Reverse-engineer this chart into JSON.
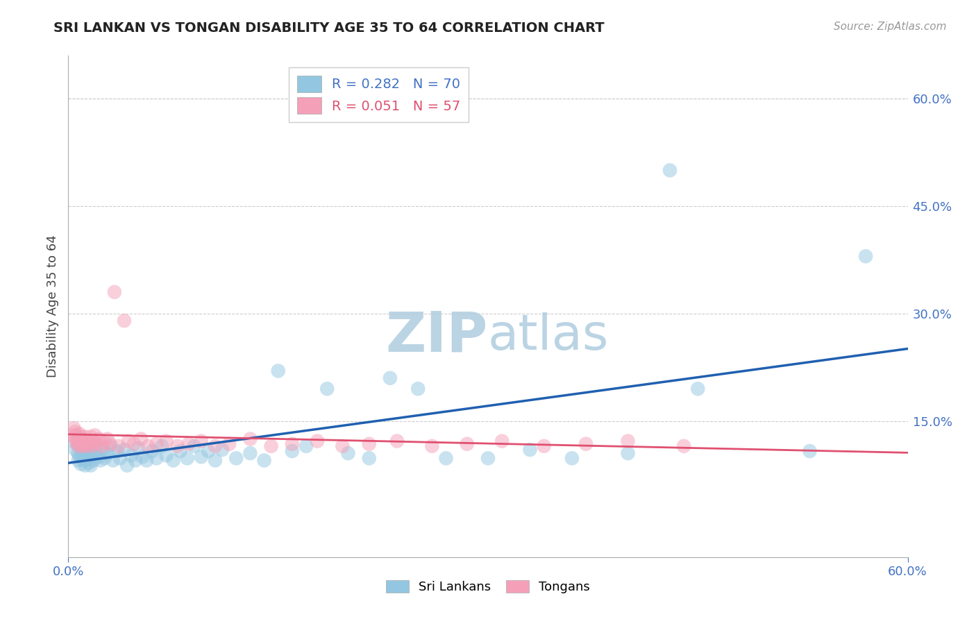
{
  "title": "SRI LANKAN VS TONGAN DISABILITY AGE 35 TO 64 CORRELATION CHART",
  "source": "Source: ZipAtlas.com",
  "ylabel": "Disability Age 35 to 64",
  "right_yticks": [
    0.15,
    0.3,
    0.45,
    0.6
  ],
  "right_yticklabels": [
    "15.0%",
    "30.0%",
    "45.0%",
    "60.0%"
  ],
  "xlim": [
    0.0,
    0.6
  ],
  "ylim": [
    -0.04,
    0.66
  ],
  "sri_lankan_R": 0.282,
  "sri_lankan_N": 70,
  "tongan_R": 0.051,
  "tongan_N": 57,
  "blue_color": "#93c6e0",
  "pink_color": "#f4a0b8",
  "blue_line_color": "#2060b0",
  "pink_line_color": "#e05070",
  "watermark_color": "#d0e4f0",
  "sri_lankans_x": [
    0.005,
    0.005,
    0.007,
    0.007,
    0.008,
    0.008,
    0.009,
    0.009,
    0.01,
    0.01,
    0.011,
    0.011,
    0.012,
    0.013,
    0.014,
    0.015,
    0.015,
    0.016,
    0.017,
    0.018,
    0.019,
    0.02,
    0.022,
    0.023,
    0.025,
    0.026,
    0.028,
    0.03,
    0.032,
    0.035,
    0.037,
    0.04,
    0.042,
    0.045,
    0.048,
    0.05,
    0.053,
    0.056,
    0.06,
    0.063,
    0.067,
    0.07,
    0.075,
    0.08,
    0.085,
    0.09,
    0.095,
    0.1,
    0.105,
    0.11,
    0.12,
    0.13,
    0.14,
    0.15,
    0.16,
    0.17,
    0.185,
    0.2,
    0.215,
    0.23,
    0.25,
    0.27,
    0.3,
    0.33,
    0.36,
    0.4,
    0.43,
    0.45,
    0.53,
    0.57
  ],
  "sri_lankans_y": [
    0.12,
    0.11,
    0.105,
    0.095,
    0.115,
    0.1,
    0.09,
    0.115,
    0.108,
    0.098,
    0.112,
    0.095,
    0.088,
    0.105,
    0.098,
    0.11,
    0.092,
    0.088,
    0.102,
    0.095,
    0.108,
    0.115,
    0.1,
    0.095,
    0.11,
    0.098,
    0.105,
    0.115,
    0.095,
    0.108,
    0.098,
    0.11,
    0.088,
    0.102,
    0.095,
    0.112,
    0.1,
    0.095,
    0.108,
    0.098,
    0.115,
    0.102,
    0.095,
    0.108,
    0.098,
    0.115,
    0.1,
    0.108,
    0.095,
    0.11,
    0.098,
    0.105,
    0.095,
    0.22,
    0.108,
    0.115,
    0.195,
    0.105,
    0.098,
    0.21,
    0.195,
    0.098,
    0.098,
    0.11,
    0.098,
    0.105,
    0.5,
    0.195,
    0.108,
    0.38
  ],
  "tongans_x": [
    0.003,
    0.004,
    0.005,
    0.005,
    0.006,
    0.006,
    0.007,
    0.007,
    0.008,
    0.008,
    0.009,
    0.009,
    0.01,
    0.01,
    0.011,
    0.012,
    0.013,
    0.014,
    0.015,
    0.016,
    0.017,
    0.018,
    0.019,
    0.02,
    0.022,
    0.024,
    0.026,
    0.028,
    0.03,
    0.033,
    0.036,
    0.04,
    0.043,
    0.047,
    0.052,
    0.057,
    0.063,
    0.07,
    0.078,
    0.086,
    0.095,
    0.105,
    0.115,
    0.13,
    0.145,
    0.16,
    0.178,
    0.196,
    0.215,
    0.235,
    0.26,
    0.285,
    0.31,
    0.34,
    0.37,
    0.4,
    0.44
  ],
  "tongans_y": [
    0.13,
    0.14,
    0.125,
    0.135,
    0.12,
    0.13,
    0.115,
    0.125,
    0.132,
    0.118,
    0.128,
    0.122,
    0.115,
    0.125,
    0.118,
    0.128,
    0.115,
    0.122,
    0.118,
    0.128,
    0.115,
    0.122,
    0.13,
    0.118,
    0.125,
    0.115,
    0.12,
    0.125,
    0.118,
    0.33,
    0.115,
    0.29,
    0.122,
    0.118,
    0.125,
    0.115,
    0.118,
    0.122,
    0.115,
    0.118,
    0.122,
    0.115,
    0.118,
    0.125,
    0.115,
    0.118,
    0.122,
    0.115,
    0.118,
    0.122,
    0.115,
    0.118,
    0.122,
    0.115,
    0.118,
    0.122,
    0.115
  ]
}
